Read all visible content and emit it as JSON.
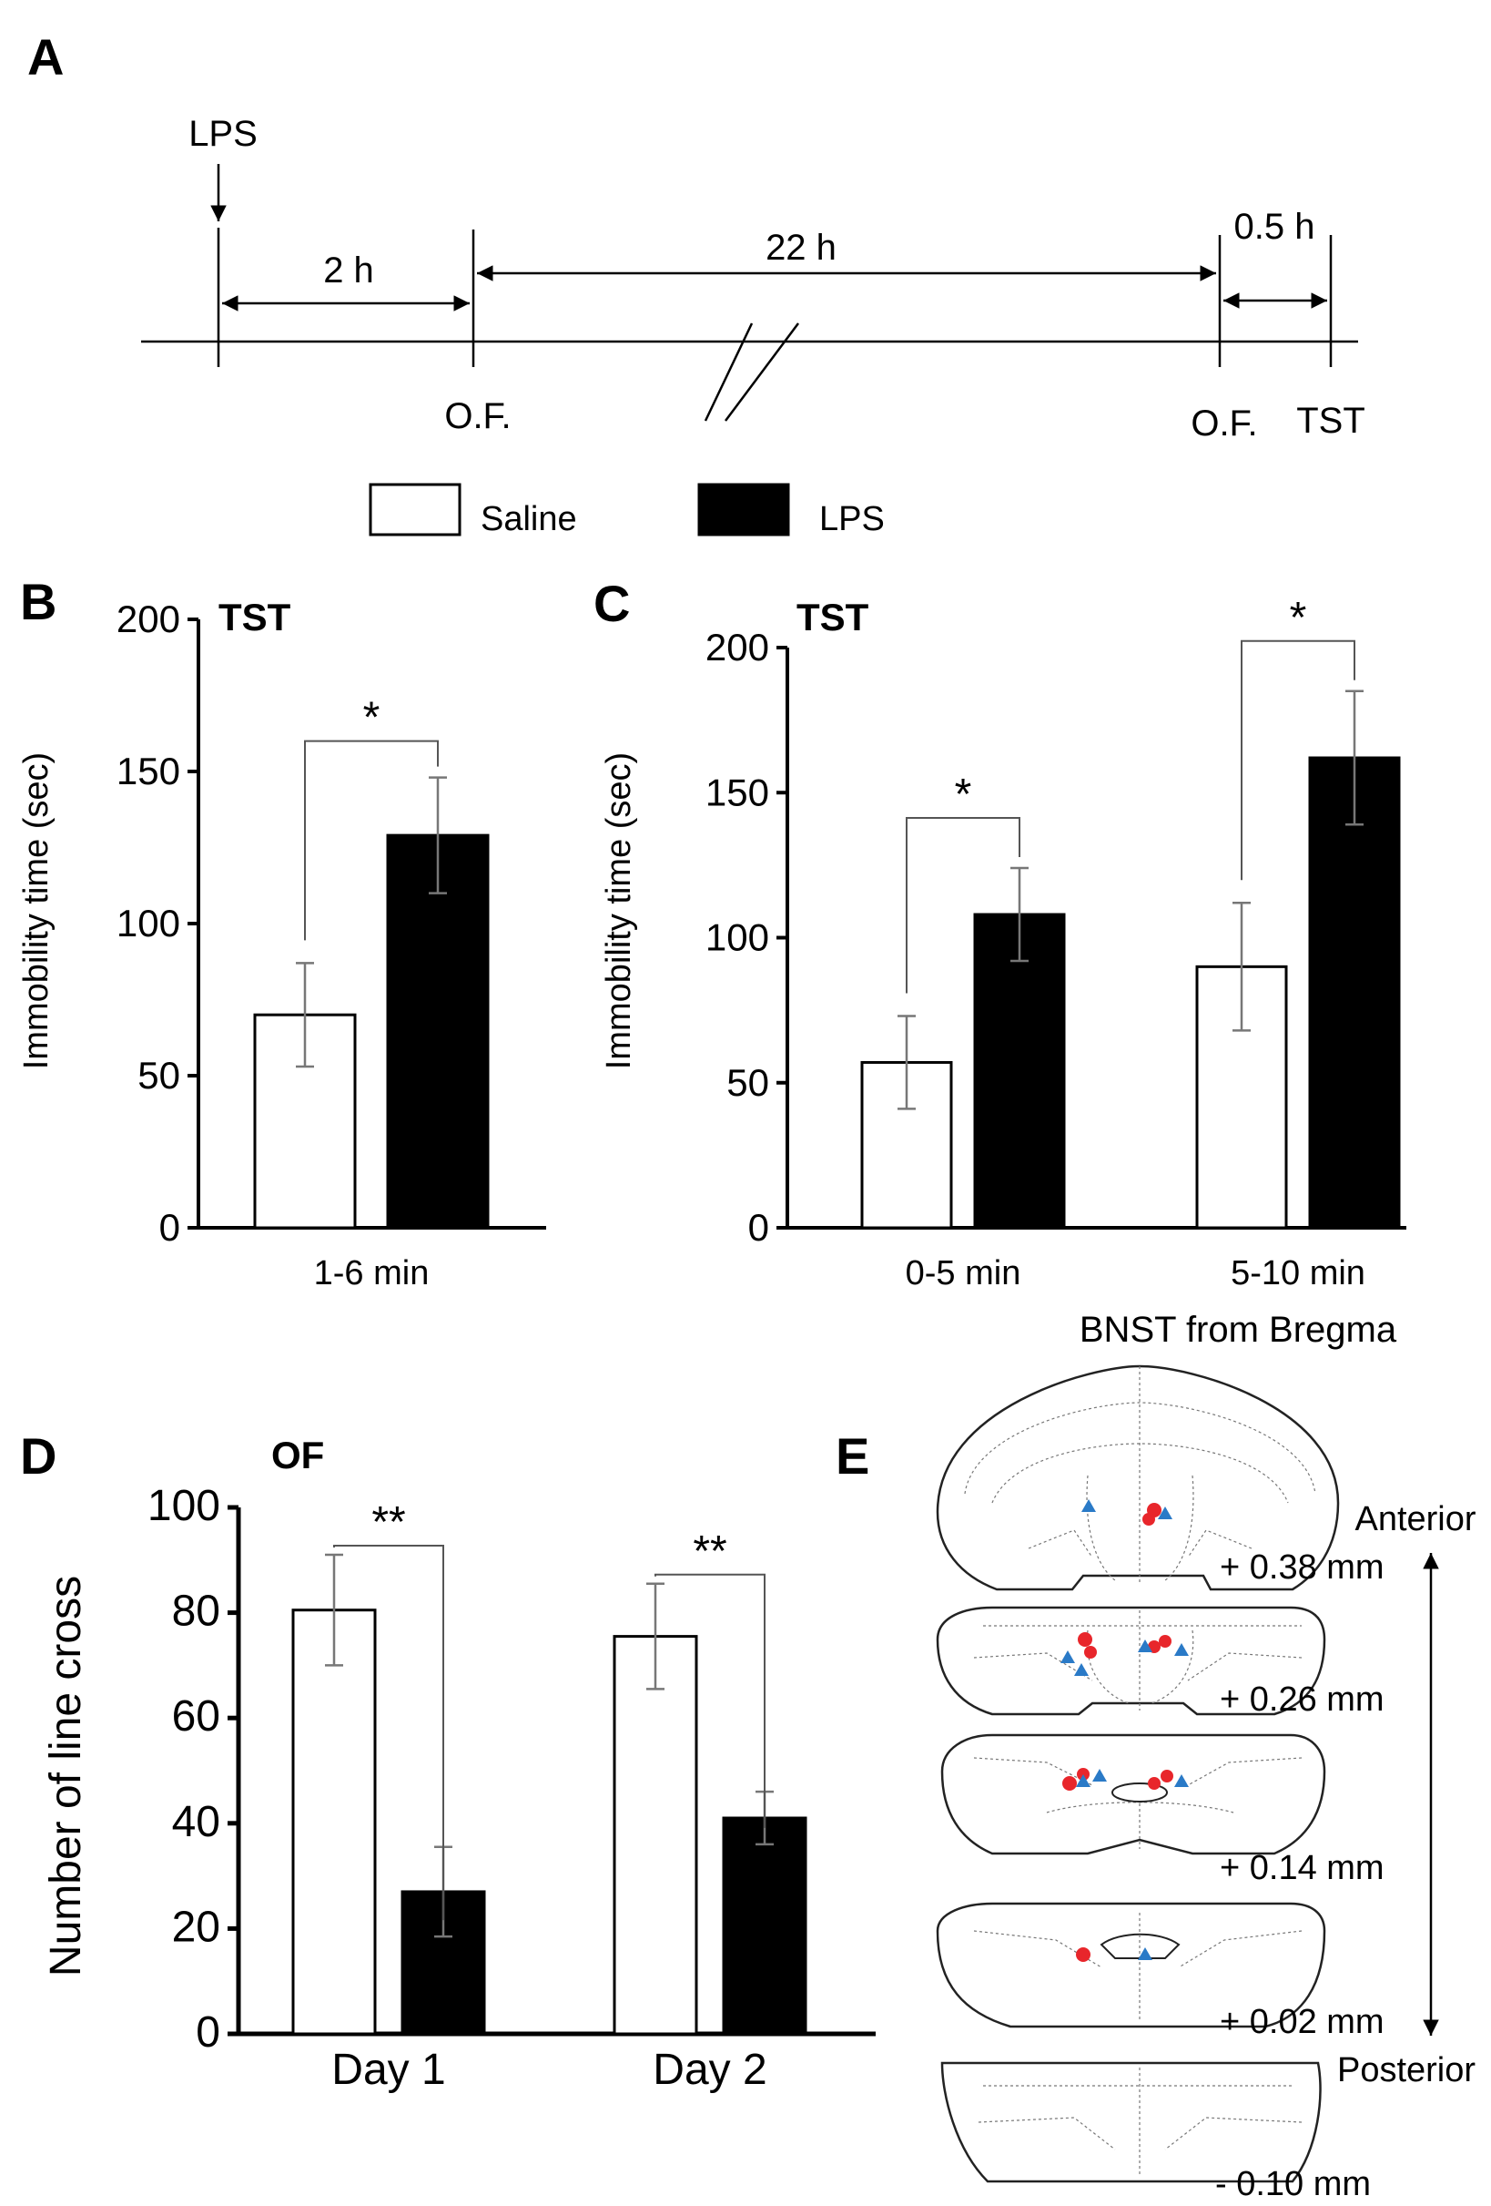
{
  "panel_labels": {
    "a": "A",
    "b": "B",
    "c": "C",
    "d": "D",
    "e": "E"
  },
  "timeline": {
    "lps": "LPS",
    "interval_1": "2 h",
    "interval_2": "22 h",
    "interval_3": "0.5 h",
    "event_1": "O.F.",
    "event_2": "O.F.",
    "event_3": "TST"
  },
  "legend": {
    "saline": "Saline",
    "lps": "LPS"
  },
  "colors": {
    "saline": "#ffffff",
    "lps": "#000000",
    "marker_red": "#e8262b",
    "marker_blue": "#2a7ac7"
  },
  "chart_data": [
    {
      "id": "B",
      "type": "bar",
      "title": "TST",
      "ylabel": "Immobility time (sec)",
      "ylim": [
        0,
        200
      ],
      "yticks": [
        "0",
        "50",
        "100",
        "150",
        "200"
      ],
      "categories": [
        "1-6 min"
      ],
      "series": [
        {
          "name": "Saline",
          "values": [
            70
          ],
          "errors": [
            17
          ]
        },
        {
          "name": "LPS",
          "values": [
            129
          ],
          "errors": [
            19
          ]
        }
      ],
      "significance": [
        {
          "category": 0,
          "label": "*"
        }
      ]
    },
    {
      "id": "C",
      "type": "bar",
      "title": "TST",
      "ylabel": "Immobility time (sec)",
      "ylim": [
        0,
        200
      ],
      "yticks": [
        "0",
        "50",
        "100",
        "150",
        "200"
      ],
      "categories": [
        "0-5 min",
        "5-10 min"
      ],
      "series": [
        {
          "name": "Saline",
          "values": [
            57,
            90
          ],
          "errors": [
            16,
            22
          ]
        },
        {
          "name": "LPS",
          "values": [
            108,
            162
          ],
          "errors": [
            16,
            23
          ]
        }
      ],
      "significance": [
        {
          "category": 0,
          "label": "*"
        },
        {
          "category": 1,
          "label": "*"
        }
      ]
    },
    {
      "id": "D",
      "type": "bar",
      "title": "OF",
      "ylabel": "Number of line cross",
      "ylim": [
        0,
        100
      ],
      "yticks": [
        "0",
        "20",
        "40",
        "60",
        "80",
        "100"
      ],
      "categories": [
        "Day 1",
        "Day 2"
      ],
      "series": [
        {
          "name": "Saline",
          "values": [
            80.5,
            75.5
          ],
          "errors": [
            10.5,
            10
          ]
        },
        {
          "name": "LPS",
          "values": [
            27,
            41
          ],
          "errors": [
            8.5,
            5
          ]
        }
      ],
      "significance": [
        {
          "category": 0,
          "label": "**"
        },
        {
          "category": 1,
          "label": "**"
        }
      ]
    }
  ],
  "panel_e": {
    "title": "BNST from Bregma",
    "anterior": "Anterior",
    "posterior": "Posterior",
    "sections": [
      "+ 0.38 mm",
      "+ 0.26 mm",
      "+ 0.14 mm",
      "+ 0.02 mm",
      "- 0.10 mm"
    ]
  }
}
